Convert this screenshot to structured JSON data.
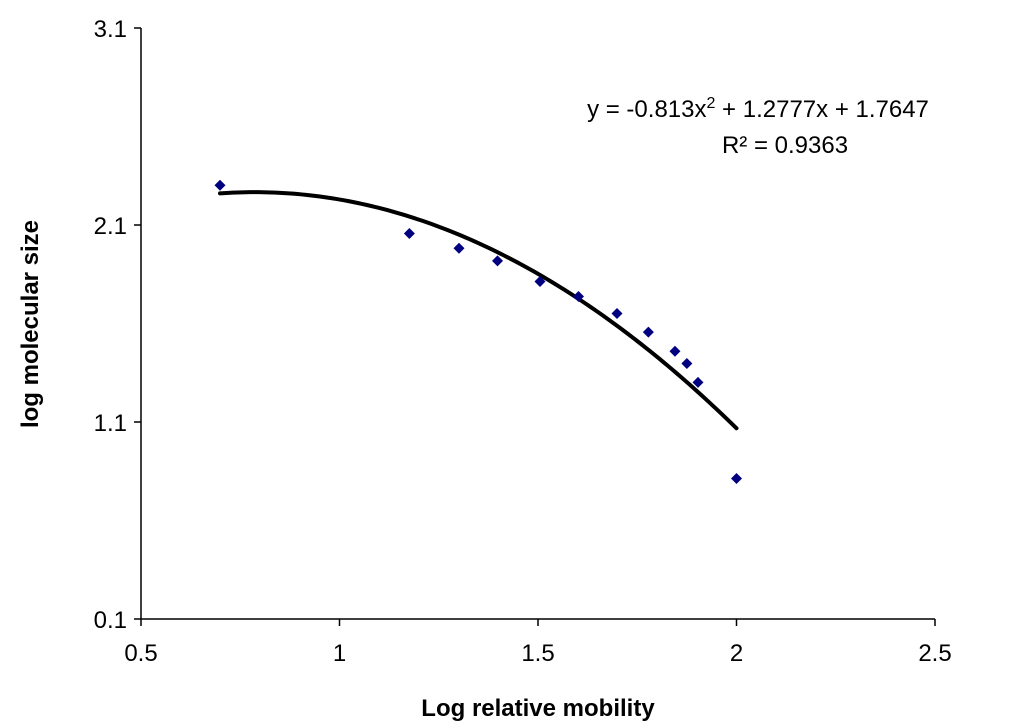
{
  "chart_data": {
    "type": "scatter",
    "xlabel": "Log relative mobility",
    "ylabel": "log  molecular size",
    "xlim": [
      0.5,
      2.5
    ],
    "ylim": [
      0.1,
      3.1
    ],
    "xticks": [
      0.5,
      1,
      1.5,
      2,
      2.5
    ],
    "xtick_labels": [
      "0.5",
      "1",
      "1.5",
      "2",
      "2.5"
    ],
    "yticks": [
      0.1,
      1.1,
      2.1,
      3.1
    ],
    "ytick_labels": [
      "0.1",
      "1.1",
      "2.1",
      "3.1"
    ],
    "grid": false,
    "legend": "none",
    "series": [
      {
        "marker": "diamond",
        "color": "#000080",
        "x": [
          0.699,
          1.176,
          1.301,
          1.398,
          1.505,
          1.602,
          1.699,
          1.778,
          1.845,
          1.875,
          1.903,
          2.0
        ],
        "y": [
          2.302,
          2.057,
          1.982,
          1.918,
          1.813,
          1.737,
          1.651,
          1.556,
          1.459,
          1.397,
          1.301,
          0.813
        ]
      }
    ],
    "trendline": {
      "kind": "polynomial",
      "order": 2,
      "coefficients": [
        -0.813,
        1.2777,
        1.7647
      ],
      "x_range": [
        0.699,
        2.0
      ],
      "color": "#000000"
    },
    "annotations": {
      "equation": {
        "prefix": "y = -0.813x",
        "superscript": "2",
        "suffix": " + 1.2777x + 1.7647"
      },
      "r_squared": "R² = 0.9363"
    }
  }
}
